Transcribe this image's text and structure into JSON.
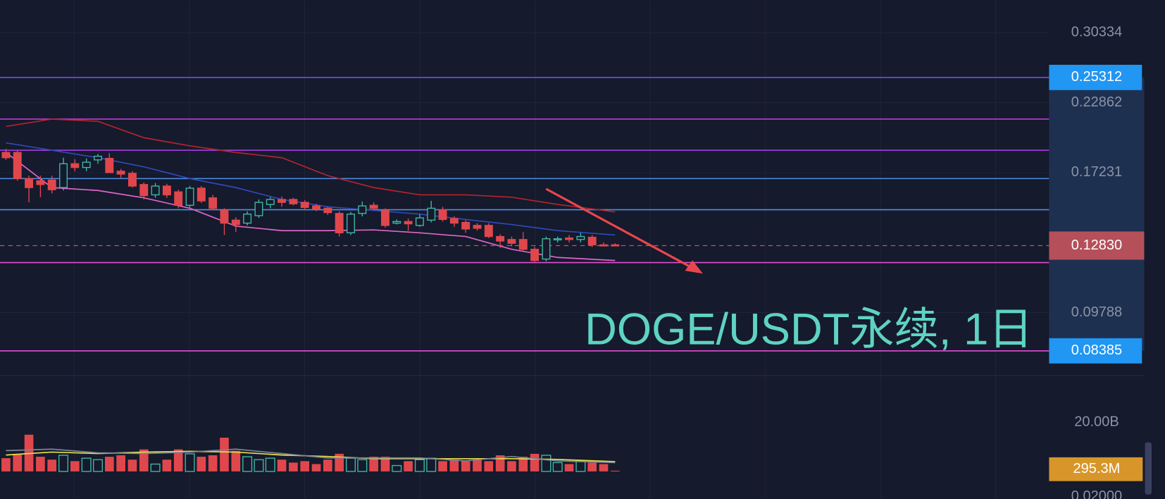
{
  "chart_data": {
    "type": "candlestick",
    "annotation": "DOGE/USDT永续, 1日",
    "log_scale": true,
    "grid": true,
    "up_color": "#3fb8a4",
    "down_color": "#e0474c",
    "ylim": [
      0.0759,
      0.346
    ],
    "yticks": [
      0.30334,
      0.22862,
      0.17231,
      0.09788
    ],
    "candles": {
      "open": [
        0.1869,
        0.1869,
        0.1682,
        0.1667,
        0.1672,
        0.1622,
        0.1786,
        0.1759,
        0.1814,
        0.1825,
        0.1733,
        0.1718,
        0.1642,
        0.1575,
        0.1632,
        0.1594,
        0.151,
        0.1618,
        0.1556,
        0.1479,
        0.1422,
        0.1405,
        0.1448,
        0.1515,
        0.1546,
        0.1546,
        0.1528,
        0.1506,
        0.1492,
        0.1461,
        0.1351,
        0.1461,
        0.151,
        0.1479,
        0.1405,
        0.1414,
        0.1392,
        0.1422,
        0.1483,
        0.1431,
        0.1409,
        0.1392,
        0.1392,
        0.1331,
        0.1315,
        0.1315,
        0.1264,
        0.1215,
        0.1315,
        0.1323,
        0.1315,
        0.1327,
        0.1287,
        0.1287
      ],
      "high": [
        0.1897,
        0.1886,
        0.1703,
        0.1702,
        0.1702,
        0.183,
        0.1819,
        0.1825,
        0.1858,
        0.1864,
        0.1749,
        0.1733,
        0.1657,
        0.1652,
        0.1647,
        0.1608,
        0.1632,
        0.1632,
        0.1575,
        0.1492,
        0.1439,
        0.1474,
        0.1546,
        0.156,
        0.1565,
        0.1556,
        0.1542,
        0.1519,
        0.1501,
        0.1474,
        0.147,
        0.1533,
        0.1528,
        0.1492,
        0.1426,
        0.1431,
        0.1457,
        0.1537,
        0.1501,
        0.1444,
        0.1422,
        0.1405,
        0.1405,
        0.1343,
        0.1331,
        0.1355,
        0.1276,
        0.1331,
        0.1331,
        0.1339,
        0.1351,
        0.1339,
        0.1299,
        0.1295
      ],
      "low": [
        0.1814,
        0.1667,
        0.1528,
        0.156,
        0.1584,
        0.1603,
        0.1733,
        0.1733,
        0.1786,
        0.1723,
        0.1682,
        0.1622,
        0.1546,
        0.1556,
        0.1556,
        0.1492,
        0.1497,
        0.1524,
        0.1479,
        0.1339,
        0.1355,
        0.1392,
        0.1435,
        0.1492,
        0.1501,
        0.151,
        0.1483,
        0.1474,
        0.1452,
        0.1331,
        0.1339,
        0.1444,
        0.1479,
        0.138,
        0.1397,
        0.1363,
        0.1384,
        0.1409,
        0.1414,
        0.1384,
        0.1351,
        0.1363,
        0.1323,
        0.1271,
        0.1279,
        0.1252,
        0.1201,
        0.1204,
        0.1299,
        0.1299,
        0.1299,
        0.1276,
        0.1279,
        0.1279
      ],
      "close": [
        0.183,
        0.1682,
        0.1622,
        0.1642,
        0.1608,
        0.1786,
        0.1759,
        0.1797,
        0.1841,
        0.1723,
        0.1713,
        0.1632,
        0.157,
        0.1632,
        0.1575,
        0.151,
        0.1618,
        0.1537,
        0.1492,
        0.1405,
        0.1397,
        0.1457,
        0.1528,
        0.1546,
        0.1528,
        0.1519,
        0.1497,
        0.1488,
        0.1466,
        0.1351,
        0.1457,
        0.1506,
        0.1492,
        0.1392,
        0.1414,
        0.1401,
        0.1435,
        0.1492,
        0.1426,
        0.1405,
        0.1372,
        0.1376,
        0.1331,
        0.1307,
        0.1295,
        0.1264,
        0.1208,
        0.1319,
        0.1319,
        0.1315,
        0.1331,
        0.1287,
        0.1283,
        0.1283
      ]
    },
    "indicators": [
      {
        "color": "#b3242f",
        "x": [
          0,
          4,
          8,
          12,
          16,
          20,
          24,
          28,
          32,
          36,
          40,
          44,
          48,
          53
        ],
        "values": [
          0.2076,
          0.2139,
          0.212,
          0.1984,
          0.192,
          0.1869,
          0.183,
          0.1702,
          0.1622,
          0.1575,
          0.1575,
          0.156,
          0.1515,
          0.147
        ]
      },
      {
        "color": "#2f49b8",
        "x": [
          0,
          4,
          8,
          12,
          16,
          20,
          24,
          28,
          32,
          36,
          40,
          44,
          48,
          53
        ],
        "values": [
          0.1943,
          0.1886,
          0.183,
          0.1764,
          0.1682,
          0.1622,
          0.1546,
          0.1501,
          0.1479,
          0.1457,
          0.1426,
          0.1397,
          0.1363,
          0.1339
        ]
      },
      {
        "color": "#e065c8",
        "x": [
          0,
          4,
          8,
          12,
          16,
          20,
          24,
          28,
          32,
          36,
          40,
          44,
          48,
          53
        ],
        "values": [
          0.1869,
          0.1622,
          0.1603,
          0.1556,
          0.1492,
          0.1388,
          0.1363,
          0.1363,
          0.1367,
          0.1351,
          0.1331,
          0.1264,
          0.1223,
          0.1208
        ]
      }
    ],
    "levels": [
      {
        "value": 0.25312,
        "color": "#7c4dff",
        "label_color": "#2196f3"
      },
      {
        "value": 0.2139,
        "color": "#c13bd6"
      },
      {
        "value": 0.1886,
        "color": "#a53be0"
      },
      {
        "value": 0.1682,
        "color": "#4f8fe8"
      },
      {
        "value": 0.1483,
        "color": "#4f8fe8"
      },
      {
        "value": 0.1198,
        "color": "#e04fd0"
      },
      {
        "value": 0.08385,
        "color": "#e04fd0",
        "label_color": "#2196f3"
      }
    ],
    "last_price": {
      "value": 0.1283,
      "label": "0.12830",
      "color": "#b5505a"
    },
    "volume": [
      5.4,
      7.2,
      15,
      6,
      4.8,
      6.6,
      4.2,
      5.4,
      4.8,
      6,
      6.6,
      4.8,
      9,
      3,
      4.8,
      9,
      7.2,
      6,
      6.6,
      13.8,
      8.4,
      6,
      4.8,
      5.4,
      4.8,
      3.6,
      4.2,
      3,
      4.8,
      7.2,
      5.4,
      4.8,
      6,
      6,
      2.4,
      4.2,
      4.8,
      5.4,
      4.2,
      4.8,
      4.2,
      4.8,
      4.2,
      6.6,
      4.2,
      6,
      7.2,
      6.6,
      3.6,
      3,
      4.2,
      3.6,
      3,
      0.2953
    ],
    "y2lim": [
      0,
      24
    ],
    "y2ticks": [
      {
        "value": 20,
        "label": "20.00B"
      }
    ],
    "last_volume": {
      "value": 0.2953,
      "label": "295.3M",
      "color": "#d8962a"
    },
    "volume_ma": [
      {
        "color": "#e8e04a",
        "x": [
          0,
          4,
          8,
          12,
          16,
          20,
          24,
          28,
          32,
          36,
          40,
          44,
          48,
          53
        ],
        "values": [
          6.7,
          7.9,
          7.3,
          7.9,
          8.2,
          7.9,
          6.7,
          6.1,
          5.2,
          5.2,
          5.2,
          5.2,
          4.9,
          4.0
        ]
      },
      {
        "color": "#7d8598",
        "x": [
          0,
          4,
          8,
          12,
          16,
          20,
          24,
          28,
          32,
          36,
          40,
          44,
          48,
          53
        ],
        "values": [
          8.5,
          9.1,
          7.6,
          7.3,
          7.9,
          9.1,
          7.3,
          5.5,
          5.5,
          5.5,
          4.3,
          6.1,
          4.3,
          3.6
        ]
      }
    ],
    "lower_pane_label": "0.02000"
  }
}
